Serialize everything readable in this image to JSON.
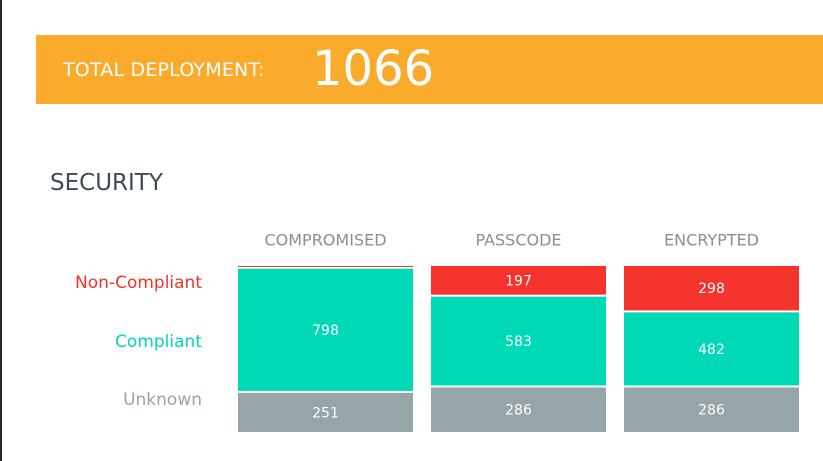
{
  "banner": {
    "label": "TOTAL DEPLOYMENT:",
    "value": 1066
  },
  "section_title": "SECURITY",
  "chart_data": {
    "type": "stacked_bar",
    "categories": [
      "COMPROMISED",
      "PASSCODE",
      "ENCRYPTED"
    ],
    "series": [
      {
        "name": "Non-Compliant",
        "color": "#f5332d",
        "values": [
          17,
          197,
          298
        ]
      },
      {
        "name": "Compliant",
        "color": "#00d9b6",
        "values": [
          798,
          583,
          482
        ]
      },
      {
        "name": "Unknown",
        "color": "#95a5a8",
        "values": [
          251,
          286,
          286
        ]
      }
    ]
  }
}
